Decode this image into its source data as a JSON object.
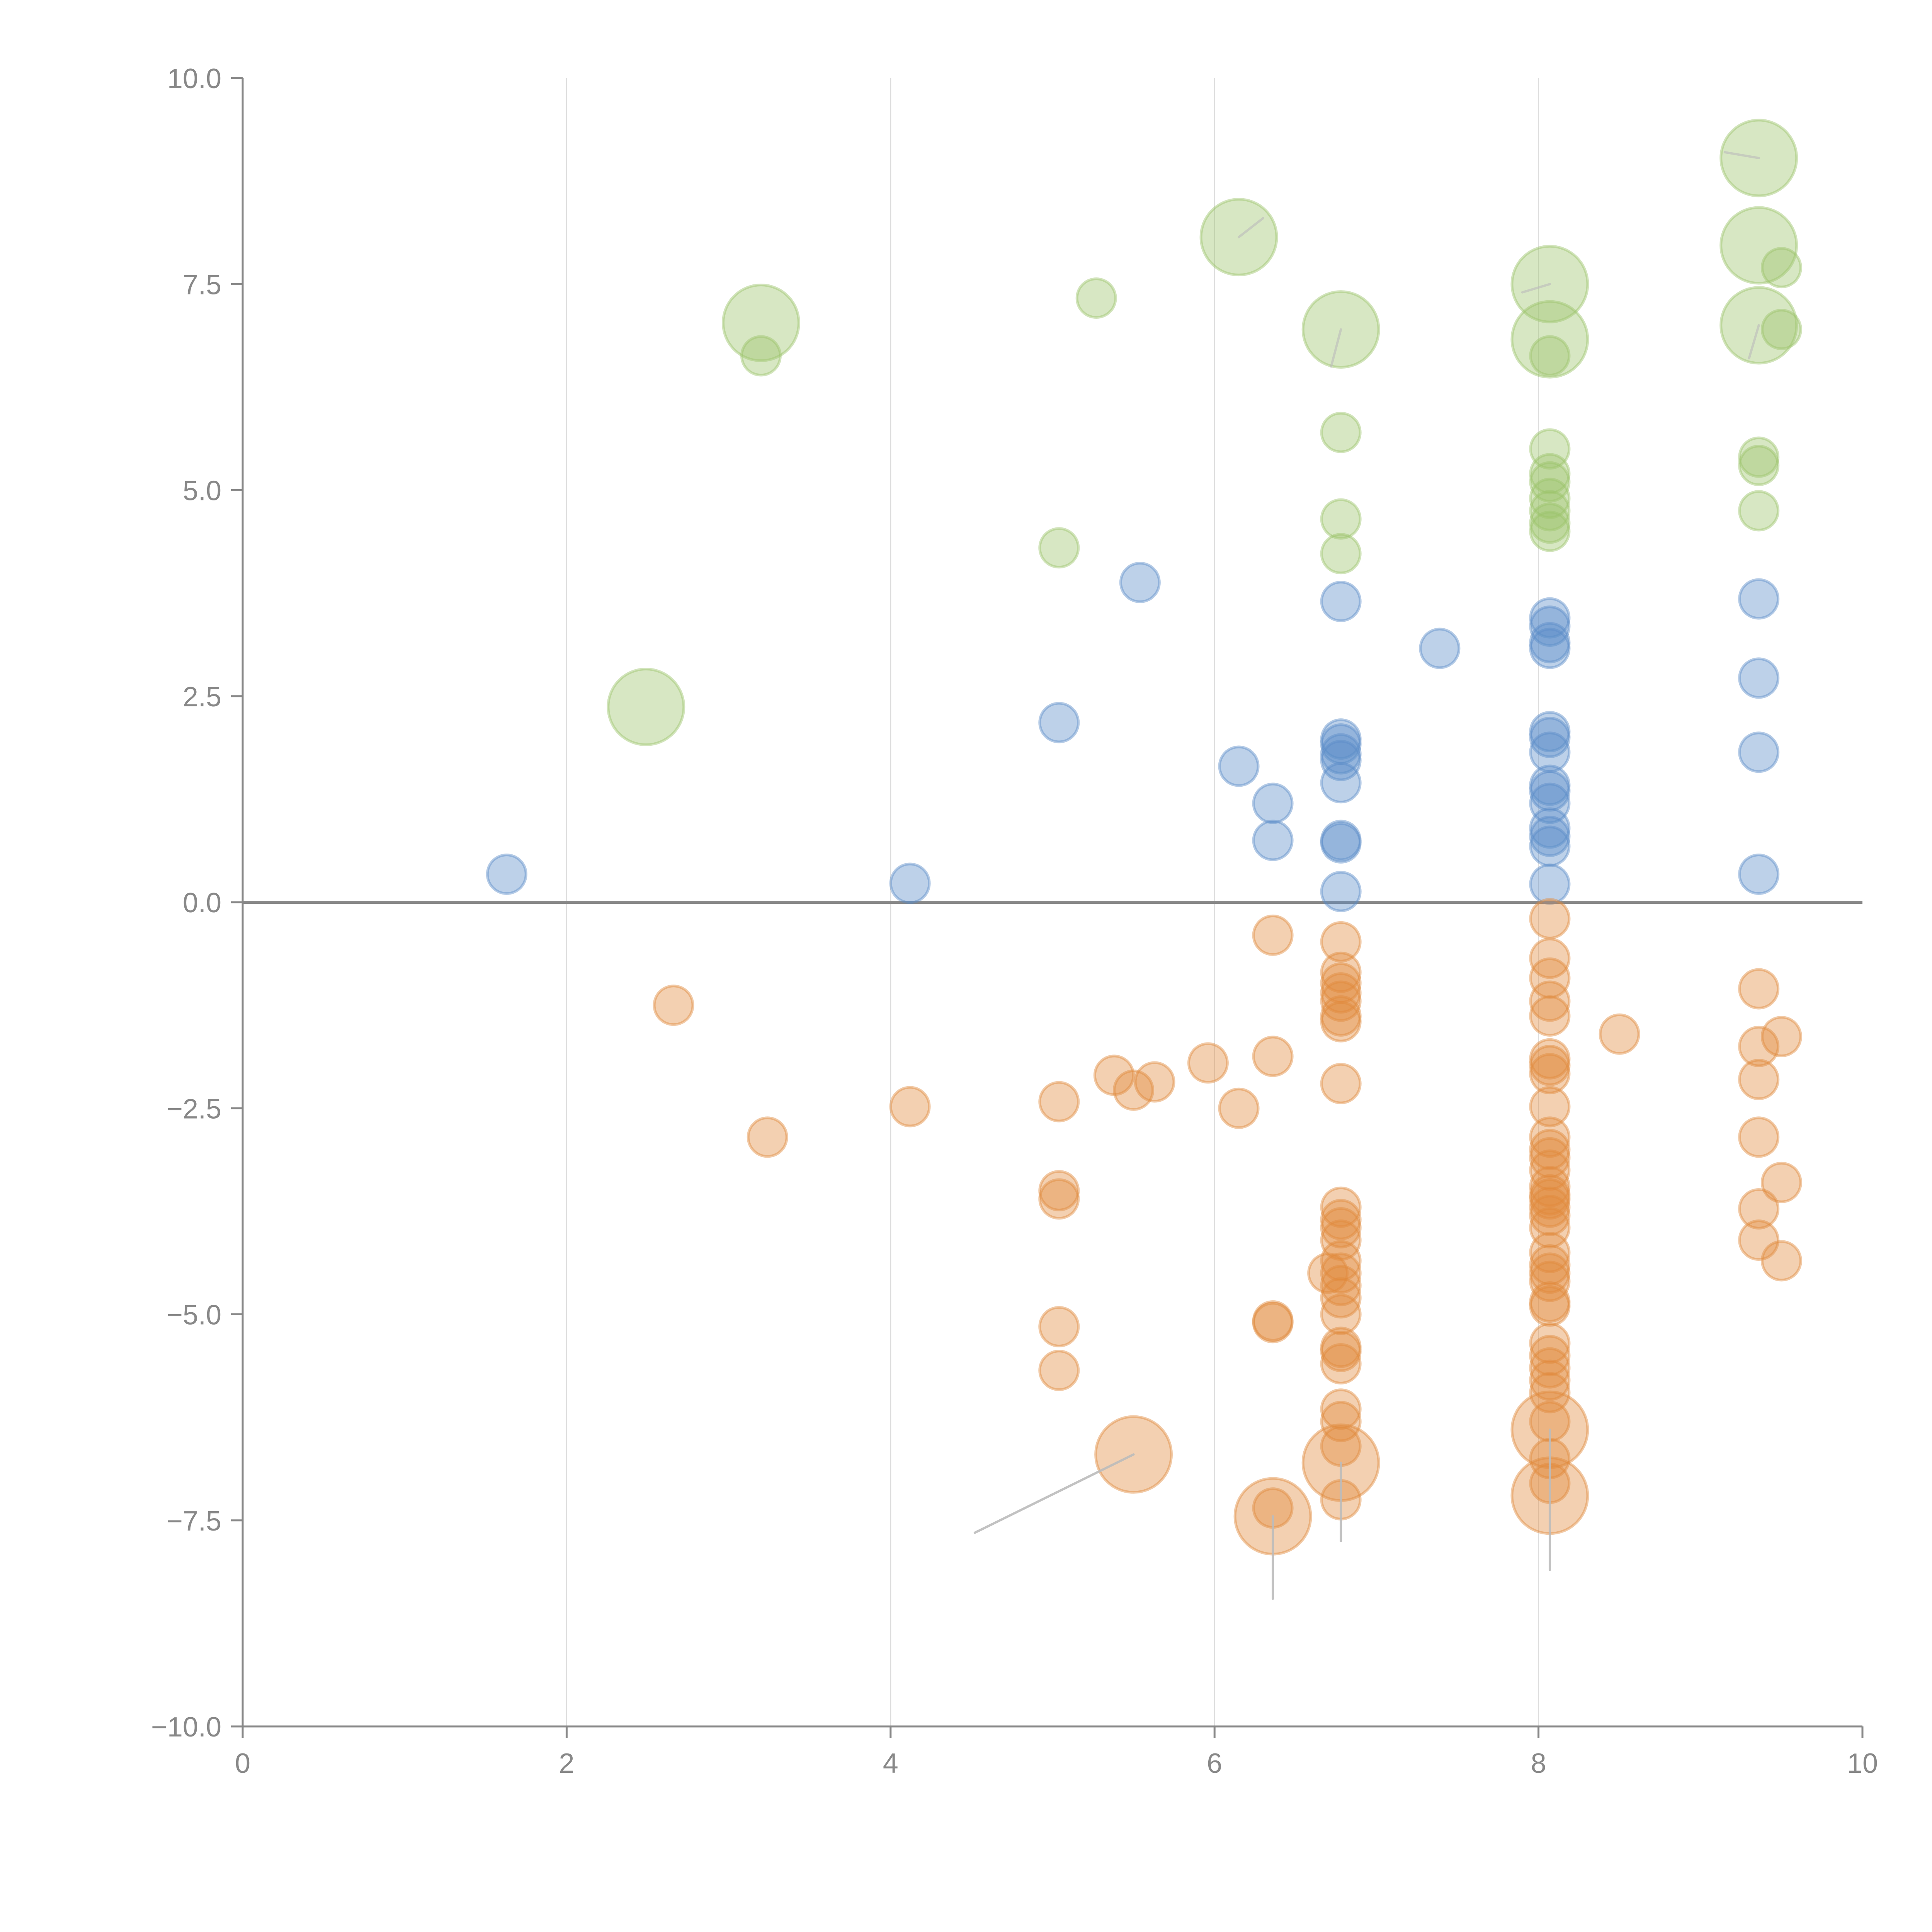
{
  "chart_data": {
    "type": "scatter",
    "title": "",
    "xlabel": "",
    "ylabel": "",
    "xlim": [
      0,
      10
    ],
    "ylim": [
      -10,
      10
    ],
    "x_ticks": [
      "0",
      "2",
      "4",
      "6",
      "8",
      "10"
    ],
    "x_tick_values": [
      0,
      2,
      4,
      6,
      8,
      10
    ],
    "y_ticks": [
      "10.0",
      "7.5",
      "5.0",
      "2.5",
      "0.0",
      "−2.5",
      "−5.0",
      "−7.5",
      "−10.0"
    ],
    "y_tick_values": [
      10,
      7.5,
      5,
      2.5,
      0,
      -2.5,
      -5,
      -7.5,
      -10
    ],
    "grid": "vertical",
    "legend": "none",
    "series": [
      {
        "name": "green",
        "color": "#9bc46a",
        "points": [
          [
            9.36,
            9.03,
            2
          ],
          [
            6.15,
            8.07,
            2
          ],
          [
            9.36,
            7.97,
            2
          ],
          [
            9.5,
            7.7,
            1
          ],
          [
            8.07,
            7.5,
            2
          ],
          [
            5.27,
            7.33,
            1
          ],
          [
            3.2,
            7.03,
            2
          ],
          [
            9.36,
            7.0,
            2
          ],
          [
            6.78,
            6.95,
            2
          ],
          [
            9.5,
            6.95,
            1
          ],
          [
            8.07,
            6.83,
            2
          ],
          [
            3.2,
            6.63,
            1
          ],
          [
            8.07,
            6.63,
            1
          ],
          [
            6.78,
            5.7,
            1
          ],
          [
            8.07,
            5.5,
            1
          ],
          [
            9.36,
            5.4,
            1
          ],
          [
            9.36,
            5.3,
            1
          ],
          [
            8.07,
            5.2,
            1
          ],
          [
            8.07,
            5.1,
            1
          ],
          [
            8.07,
            4.9,
            1
          ],
          [
            8.07,
            4.75,
            1
          ],
          [
            8.07,
            4.6,
            1
          ],
          [
            8.07,
            4.5,
            1
          ],
          [
            9.36,
            4.75,
            1
          ],
          [
            6.78,
            4.65,
            1
          ],
          [
            6.78,
            4.23,
            1
          ],
          [
            5.04,
            4.3,
            1
          ],
          [
            2.49,
            2.37,
            2
          ]
        ]
      },
      {
        "name": "blue",
        "color": "#5b8cc8",
        "points": [
          [
            5.54,
            3.88,
            1
          ],
          [
            6.78,
            3.65,
            1
          ],
          [
            9.36,
            3.68,
            1
          ],
          [
            8.07,
            3.45,
            1
          ],
          [
            8.07,
            3.35,
            1
          ],
          [
            8.07,
            3.15,
            1
          ],
          [
            8.07,
            3.08,
            1
          ],
          [
            7.39,
            3.08,
            1
          ],
          [
            9.36,
            2.72,
            1
          ],
          [
            5.04,
            2.18,
            1
          ],
          [
            8.07,
            2.07,
            1
          ],
          [
            8.07,
            2.0,
            1
          ],
          [
            6.78,
            1.98,
            1
          ],
          [
            6.78,
            1.92,
            1
          ],
          [
            6.78,
            1.8,
            1
          ],
          [
            6.78,
            1.72,
            1
          ],
          [
            8.07,
            1.82,
            1
          ],
          [
            9.36,
            1.82,
            1
          ],
          [
            6.15,
            1.65,
            1
          ],
          [
            6.78,
            1.45,
            1
          ],
          [
            8.07,
            1.42,
            1
          ],
          [
            8.07,
            1.35,
            1
          ],
          [
            8.07,
            1.2,
            1
          ],
          [
            6.36,
            1.2,
            1
          ],
          [
            8.07,
            0.9,
            1
          ],
          [
            8.07,
            0.8,
            1
          ],
          [
            6.78,
            0.75,
            1
          ],
          [
            6.78,
            0.72,
            1
          ],
          [
            6.36,
            0.75,
            1
          ],
          [
            8.07,
            0.68,
            1
          ],
          [
            1.63,
            0.34,
            1
          ],
          [
            9.36,
            0.34,
            1
          ],
          [
            4.12,
            0.23,
            1
          ],
          [
            8.07,
            0.22,
            1
          ],
          [
            6.78,
            0.13,
            1
          ]
        ]
      },
      {
        "name": "orange",
        "color": "#e08a3c",
        "points": [
          [
            8.07,
            -0.2,
            1
          ],
          [
            6.36,
            -0.4,
            1
          ],
          [
            6.78,
            -0.48,
            1
          ],
          [
            8.07,
            -0.68,
            1
          ],
          [
            6.78,
            -0.85,
            1
          ],
          [
            8.07,
            -0.92,
            1
          ],
          [
            6.78,
            -0.98,
            1
          ],
          [
            9.36,
            -1.05,
            1
          ],
          [
            6.78,
            -1.1,
            1
          ],
          [
            8.07,
            -1.2,
            1
          ],
          [
            6.78,
            -1.2,
            1
          ],
          [
            2.66,
            -1.25,
            1
          ],
          [
            6.78,
            -1.38,
            1
          ],
          [
            8.07,
            -1.38,
            1
          ],
          [
            6.78,
            -1.45,
            1
          ],
          [
            8.5,
            -1.6,
            1
          ],
          [
            9.5,
            -1.63,
            1
          ],
          [
            9.36,
            -1.75,
            1
          ],
          [
            6.36,
            -1.87,
            1
          ],
          [
            8.07,
            -1.9,
            1
          ],
          [
            8.07,
            -1.98,
            1
          ],
          [
            5.96,
            -1.95,
            1
          ],
          [
            8.07,
            -2.08,
            1
          ],
          [
            5.38,
            -2.1,
            1
          ],
          [
            9.36,
            -2.15,
            1
          ],
          [
            5.63,
            -2.18,
            1
          ],
          [
            6.78,
            -2.2,
            1
          ],
          [
            5.5,
            -2.28,
            1
          ],
          [
            5.04,
            -2.42,
            1
          ],
          [
            4.12,
            -2.48,
            1
          ],
          [
            8.07,
            -2.48,
            1
          ],
          [
            6.15,
            -2.5,
            1
          ],
          [
            3.24,
            -2.85,
            1
          ],
          [
            9.36,
            -2.85,
            1
          ],
          [
            8.07,
            -2.85,
            1
          ],
          [
            8.07,
            -3.0,
            1
          ],
          [
            8.07,
            -3.1,
            1
          ],
          [
            8.07,
            -3.25,
            1
          ],
          [
            9.5,
            -3.4,
            1
          ],
          [
            5.04,
            -3.5,
            1
          ],
          [
            5.04,
            -3.6,
            1
          ],
          [
            8.07,
            -3.45,
            1
          ],
          [
            8.07,
            -3.55,
            1
          ],
          [
            8.07,
            -3.6,
            1
          ],
          [
            8.07,
            -3.7,
            1
          ],
          [
            6.78,
            -3.7,
            1
          ],
          [
            9.36,
            -3.72,
            1
          ],
          [
            8.07,
            -3.8,
            1
          ],
          [
            6.78,
            -3.85,
            1
          ],
          [
            6.78,
            -3.95,
            1
          ],
          [
            8.07,
            -3.95,
            1
          ],
          [
            6.78,
            -4.1,
            1
          ],
          [
            9.36,
            -4.1,
            1
          ],
          [
            8.07,
            -4.25,
            1
          ],
          [
            9.5,
            -4.35,
            1
          ],
          [
            6.78,
            -4.35,
            1
          ],
          [
            8.07,
            -4.4,
            1
          ],
          [
            6.78,
            -4.5,
            1
          ],
          [
            8.07,
            -4.5,
            1
          ],
          [
            6.7,
            -4.5,
            1
          ],
          [
            8.07,
            -4.6,
            1
          ],
          [
            6.78,
            -4.65,
            1
          ],
          [
            6.78,
            -4.8,
            1
          ],
          [
            8.07,
            -4.85,
            1
          ],
          [
            8.07,
            -4.9,
            1
          ],
          [
            6.78,
            -5.0,
            1
          ],
          [
            6.36,
            -5.08,
            1
          ],
          [
            6.36,
            -5.1,
            1
          ],
          [
            5.04,
            -5.15,
            1
          ],
          [
            8.07,
            -5.35,
            1
          ],
          [
            6.78,
            -5.4,
            1
          ],
          [
            6.78,
            -5.45,
            1
          ],
          [
            8.07,
            -5.5,
            1
          ],
          [
            6.78,
            -5.6,
            1
          ],
          [
            8.07,
            -5.65,
            1
          ],
          [
            5.04,
            -5.68,
            1
          ],
          [
            8.07,
            -5.8,
            1
          ],
          [
            8.07,
            -5.95,
            1
          ],
          [
            6.78,
            -6.15,
            1
          ],
          [
            6.78,
            -6.3,
            1
          ],
          [
            8.07,
            -6.3,
            1
          ],
          [
            8.07,
            -6.4,
            2
          ],
          [
            6.78,
            -6.6,
            1
          ],
          [
            5.5,
            -6.7,
            2
          ],
          [
            6.78,
            -6.8,
            2
          ],
          [
            8.07,
            -6.75,
            1
          ],
          [
            8.07,
            -7.05,
            1
          ],
          [
            8.07,
            -7.2,
            2
          ],
          [
            6.78,
            -7.25,
            1
          ],
          [
            6.36,
            -7.35,
            1
          ],
          [
            6.36,
            -7.45,
            2
          ]
        ]
      }
    ],
    "size_scale": "1 = small bubble, 2 = large bubble",
    "leader_lines": [
      {
        "from": [
          5.5,
          -6.7
        ],
        "to": [
          4.52,
          -7.65
        ],
        "color": "#bbbbbb"
      },
      {
        "from": [
          6.36,
          -7.45
        ],
        "to": [
          6.36,
          -8.45
        ],
        "color": "#bbbbbb"
      },
      {
        "from": [
          6.78,
          -6.8
        ],
        "to": [
          6.78,
          -7.75
        ],
        "color": "#bbbbbb"
      },
      {
        "from": [
          8.07,
          -6.4
        ],
        "to": [
          8.07,
          -8.1
        ],
        "color": "#bbbbbb"
      },
      {
        "from": [
          6.15,
          8.07
        ],
        "to": [
          6.3,
          8.3
        ],
        "color": "#ffffff"
      },
      {
        "from": [
          9.36,
          9.03
        ],
        "to": [
          9.15,
          9.1
        ],
        "color": "#ffffff"
      },
      {
        "from": [
          8.07,
          7.5
        ],
        "to": [
          7.9,
          7.4
        ],
        "color": "#ffffff"
      },
      {
        "from": [
          6.78,
          6.95
        ],
        "to": [
          6.72,
          6.5
        ],
        "color": "#ffffff"
      },
      {
        "from": [
          9.36,
          7.0
        ],
        "to": [
          9.3,
          6.6
        ],
        "color": "#ffffff"
      }
    ]
  }
}
